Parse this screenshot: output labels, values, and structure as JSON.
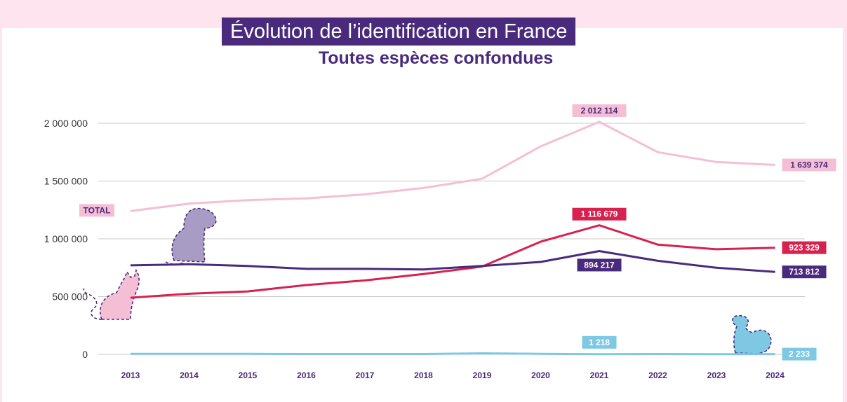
{
  "title": "Évolution de l’identification en France",
  "subtitle": "Toutes espèces confondues",
  "colors": {
    "title_bg": "#4a2a7c",
    "total": "#f4bfd5",
    "cats": "#d7214e",
    "dogs": "#4a2a7c",
    "ferrets": "#7ec8e3",
    "grid": "#c8c8c8"
  },
  "icons": [
    "dog-icon",
    "cat-icon",
    "ferret-icon"
  ],
  "chart_data": {
    "type": "line",
    "x": [
      "2013",
      "2014",
      "2015",
      "2016",
      "2017",
      "2018",
      "2019",
      "2020",
      "2021",
      "2022",
      "2023",
      "2024"
    ],
    "yticks": [
      "2 000 000",
      "1 500 000",
      "1 000 000",
      "500 000",
      "0"
    ],
    "ylim": [
      0,
      2000000
    ],
    "grid": true,
    "series": [
      {
        "key": "total",
        "name": "TOTAL",
        "values": [
          1240000,
          1305000,
          1335000,
          1350000,
          1385000,
          1440000,
          1520000,
          1800000,
          2012114,
          1750000,
          1665000,
          1639374
        ]
      },
      {
        "key": "cats",
        "values": [
          490000,
          525000,
          545000,
          600000,
          640000,
          695000,
          760000,
          975000,
          1116679,
          950000,
          910000,
          923329
        ]
      },
      {
        "key": "dogs",
        "values": [
          770000,
          780000,
          765000,
          740000,
          740000,
          735000,
          765000,
          800000,
          894217,
          810000,
          750000,
          713812
        ]
      },
      {
        "key": "ferrets",
        "values": [
          5000,
          4000,
          4000,
          3000,
          3000,
          3000,
          9000,
          5000,
          1218,
          3000,
          2000,
          2233
        ]
      }
    ],
    "annotations": [
      {
        "series": "total",
        "index": 8,
        "text": "2 012 114"
      },
      {
        "series": "total",
        "index": 11,
        "text": "1 639 374"
      },
      {
        "series": "cats",
        "index": 8,
        "text": "1 116 679"
      },
      {
        "series": "cats",
        "index": 11,
        "text": "923 329"
      },
      {
        "series": "dogs",
        "index": 8,
        "text": "894 217"
      },
      {
        "series": "dogs",
        "index": 11,
        "text": "713 812"
      },
      {
        "series": "ferrets",
        "index": 8,
        "text": "1 218"
      },
      {
        "series": "ferrets",
        "index": 11,
        "text": "2 233"
      }
    ]
  }
}
